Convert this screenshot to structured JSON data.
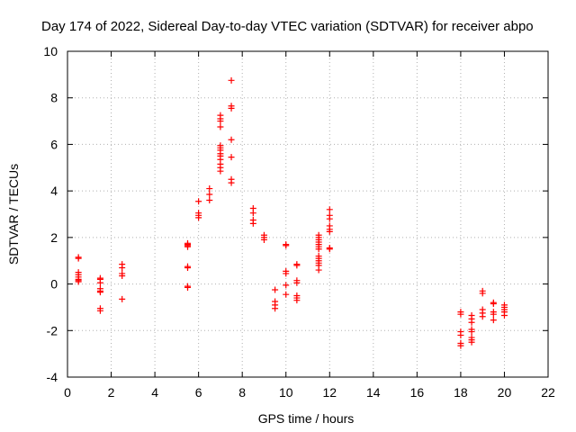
{
  "chart_data": {
    "type": "scatter",
    "title": "Day 174 of 2022, Sidereal Day-to-day VTEC variation (SDTVAR) for receiver abpo",
    "xlabel": "GPS time / hours",
    "ylabel": "SDTVAR / TECUs",
    "xlim": [
      0,
      22
    ],
    "ylim": [
      -4,
      10
    ],
    "x_ticks": [
      0,
      2,
      4,
      6,
      8,
      10,
      12,
      14,
      16,
      18,
      20,
      22
    ],
    "y_ticks": [
      -4,
      -2,
      0,
      2,
      4,
      6,
      8,
      10
    ],
    "grid": true,
    "marker": "plus",
    "series": [
      {
        "name": "SDTVAR",
        "color": "#ff0000",
        "points": [
          [
            0.5,
            1.15
          ],
          [
            0.5,
            1.1
          ],
          [
            0.5,
            0.5
          ],
          [
            0.5,
            0.4
          ],
          [
            0.5,
            0.3
          ],
          [
            0.5,
            0.2
          ],
          [
            0.5,
            0.15
          ],
          [
            0.5,
            0.1
          ],
          [
            1.5,
            0.25
          ],
          [
            1.5,
            0.2
          ],
          [
            1.5,
            0.05
          ],
          [
            1.5,
            -0.2
          ],
          [
            1.5,
            -0.3
          ],
          [
            1.5,
            -0.35
          ],
          [
            1.5,
            -1.05
          ],
          [
            1.5,
            -1.15
          ],
          [
            2.5,
            0.85
          ],
          [
            2.5,
            0.7
          ],
          [
            2.5,
            0.45
          ],
          [
            2.5,
            0.35
          ],
          [
            2.5,
            -0.65
          ],
          [
            5.5,
            1.75
          ],
          [
            5.5,
            1.7
          ],
          [
            5.5,
            1.65
          ],
          [
            5.5,
            1.6
          ],
          [
            5.5,
            0.75
          ],
          [
            5.5,
            0.7
          ],
          [
            5.5,
            -0.1
          ],
          [
            5.5,
            -0.15
          ],
          [
            6.0,
            3.55
          ],
          [
            6.0,
            3.05
          ],
          [
            6.0,
            2.95
          ],
          [
            6.0,
            2.85
          ],
          [
            6.5,
            4.1
          ],
          [
            6.5,
            3.85
          ],
          [
            6.5,
            3.6
          ],
          [
            7.0,
            7.25
          ],
          [
            7.0,
            7.1
          ],
          [
            7.0,
            7.0
          ],
          [
            7.0,
            6.75
          ],
          [
            7.0,
            5.95
          ],
          [
            7.0,
            5.85
          ],
          [
            7.0,
            5.75
          ],
          [
            7.0,
            5.6
          ],
          [
            7.0,
            5.5
          ],
          [
            7.0,
            5.35
          ],
          [
            7.0,
            5.15
          ],
          [
            7.0,
            5.0
          ],
          [
            7.0,
            4.85
          ],
          [
            7.5,
            8.75
          ],
          [
            7.5,
            7.65
          ],
          [
            7.5,
            7.55
          ],
          [
            7.5,
            6.2
          ],
          [
            7.5,
            5.45
          ],
          [
            7.5,
            4.5
          ],
          [
            7.5,
            4.35
          ],
          [
            8.5,
            3.25
          ],
          [
            8.5,
            3.05
          ],
          [
            8.5,
            2.75
          ],
          [
            8.5,
            2.6
          ],
          [
            9.0,
            2.1
          ],
          [
            9.0,
            2.0
          ],
          [
            9.0,
            1.9
          ],
          [
            9.5,
            -0.25
          ],
          [
            9.5,
            -0.75
          ],
          [
            9.5,
            -0.9
          ],
          [
            9.5,
            -1.05
          ],
          [
            10.0,
            1.7
          ],
          [
            10.0,
            1.65
          ],
          [
            10.0,
            0.55
          ],
          [
            10.0,
            0.45
          ],
          [
            10.0,
            -0.05
          ],
          [
            10.0,
            -0.45
          ],
          [
            10.5,
            0.85
          ],
          [
            10.5,
            0.8
          ],
          [
            10.5,
            0.15
          ],
          [
            10.5,
            0.05
          ],
          [
            10.5,
            -0.5
          ],
          [
            10.5,
            -0.6
          ],
          [
            10.5,
            -0.7
          ],
          [
            11.5,
            2.1
          ],
          [
            11.5,
            2.0
          ],
          [
            11.5,
            1.9
          ],
          [
            11.5,
            1.8
          ],
          [
            11.5,
            1.7
          ],
          [
            11.5,
            1.6
          ],
          [
            11.5,
            1.5
          ],
          [
            11.5,
            1.2
          ],
          [
            11.5,
            1.1
          ],
          [
            11.5,
            1.0
          ],
          [
            11.5,
            0.9
          ],
          [
            11.5,
            0.8
          ],
          [
            11.5,
            0.6
          ],
          [
            12.0,
            3.2
          ],
          [
            12.0,
            2.95
          ],
          [
            12.0,
            2.8
          ],
          [
            12.0,
            2.5
          ],
          [
            12.0,
            2.35
          ],
          [
            12.0,
            2.25
          ],
          [
            12.0,
            1.55
          ],
          [
            12.0,
            1.5
          ],
          [
            18.0,
            -1.2
          ],
          [
            18.0,
            -1.3
          ],
          [
            18.0,
            -2.05
          ],
          [
            18.0,
            -2.2
          ],
          [
            18.0,
            -2.55
          ],
          [
            18.0,
            -2.65
          ],
          [
            18.5,
            -1.35
          ],
          [
            18.5,
            -1.5
          ],
          [
            18.5,
            -1.65
          ],
          [
            18.5,
            -1.95
          ],
          [
            18.5,
            -2.05
          ],
          [
            18.5,
            -2.3
          ],
          [
            18.5,
            -2.4
          ],
          [
            18.5,
            -2.5
          ],
          [
            19.0,
            -0.3
          ],
          [
            19.0,
            -0.4
          ],
          [
            19.0,
            -1.1
          ],
          [
            19.0,
            -1.25
          ],
          [
            19.0,
            -1.4
          ],
          [
            19.5,
            -0.8
          ],
          [
            19.5,
            -0.85
          ],
          [
            19.5,
            -1.2
          ],
          [
            19.5,
            -1.3
          ],
          [
            19.5,
            -1.55
          ],
          [
            20.0,
            -0.9
          ],
          [
            20.0,
            -1.0
          ],
          [
            20.0,
            -1.1
          ],
          [
            20.0,
            -1.2
          ],
          [
            20.0,
            -1.35
          ]
        ]
      }
    ]
  }
}
